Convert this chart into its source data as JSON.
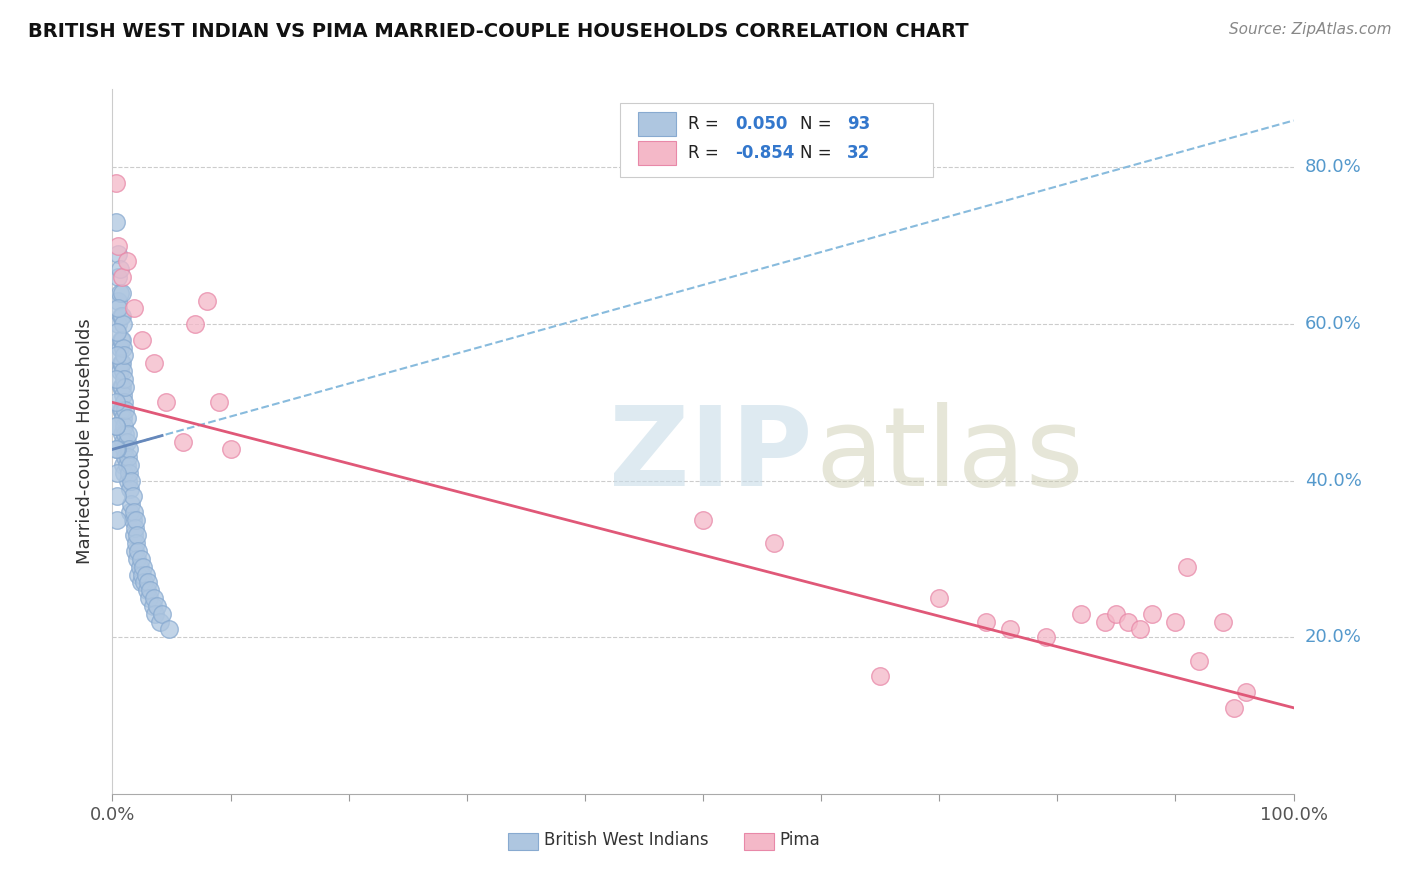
{
  "title": "BRITISH WEST INDIAN VS PIMA MARRIED-COUPLE HOUSEHOLDS CORRELATION CHART",
  "source_text": "Source: ZipAtlas.com",
  "ylabel": "Married-couple Households",
  "xlim": [
    0.0,
    1.0
  ],
  "ylim": [
    0.0,
    0.9
  ],
  "y_tick_values": [
    0.2,
    0.4,
    0.6,
    0.8
  ],
  "y_tick_labels": [
    "20.0%",
    "40.0%",
    "60.0%",
    "80.0%"
  ],
  "blue_color": "#aec6e0",
  "pink_color": "#f4b8c8",
  "blue_edge": "#88aad0",
  "pink_edge": "#e888a8",
  "blue_line_color": "#6688bb",
  "pink_line_color": "#e05878",
  "dashed_line_color": "#88bbdd",
  "blue_R": 0.05,
  "pink_R": -0.854,
  "blue_N": 93,
  "pink_N": 32,
  "blue_line_intercept": 0.44,
  "blue_line_slope": 0.42,
  "pink_line_intercept": 0.5,
  "pink_line_slope": -0.39,
  "blue_x": [
    0.003,
    0.005,
    0.005,
    0.005,
    0.005,
    0.006,
    0.006,
    0.006,
    0.006,
    0.007,
    0.007,
    0.007,
    0.007,
    0.007,
    0.008,
    0.008,
    0.008,
    0.008,
    0.008,
    0.008,
    0.008,
    0.009,
    0.009,
    0.009,
    0.009,
    0.009,
    0.009,
    0.009,
    0.01,
    0.01,
    0.01,
    0.01,
    0.01,
    0.01,
    0.011,
    0.011,
    0.011,
    0.011,
    0.012,
    0.012,
    0.012,
    0.013,
    0.013,
    0.013,
    0.014,
    0.014,
    0.015,
    0.015,
    0.015,
    0.016,
    0.016,
    0.017,
    0.017,
    0.018,
    0.018,
    0.019,
    0.019,
    0.02,
    0.02,
    0.021,
    0.021,
    0.022,
    0.022,
    0.023,
    0.024,
    0.024,
    0.025,
    0.026,
    0.027,
    0.028,
    0.029,
    0.03,
    0.031,
    0.032,
    0.034,
    0.035,
    0.036,
    0.038,
    0.04,
    0.042,
    0.004,
    0.004,
    0.004,
    0.004,
    0.003,
    0.003,
    0.003,
    0.003,
    0.003,
    0.004,
    0.004,
    0.005,
    0.048
  ],
  "blue_y": [
    0.73,
    0.69,
    0.66,
    0.63,
    0.6,
    0.57,
    0.54,
    0.67,
    0.64,
    0.61,
    0.58,
    0.55,
    0.52,
    0.49,
    0.64,
    0.61,
    0.58,
    0.55,
    0.52,
    0.49,
    0.46,
    0.6,
    0.57,
    0.54,
    0.51,
    0.48,
    0.45,
    0.42,
    0.56,
    0.53,
    0.5,
    0.47,
    0.44,
    0.41,
    0.52,
    0.49,
    0.46,
    0.43,
    0.48,
    0.45,
    0.42,
    0.46,
    0.43,
    0.4,
    0.44,
    0.41,
    0.42,
    0.39,
    0.36,
    0.4,
    0.37,
    0.38,
    0.35,
    0.36,
    0.33,
    0.34,
    0.31,
    0.35,
    0.32,
    0.33,
    0.3,
    0.31,
    0.28,
    0.29,
    0.3,
    0.27,
    0.28,
    0.29,
    0.27,
    0.28,
    0.26,
    0.27,
    0.25,
    0.26,
    0.24,
    0.25,
    0.23,
    0.24,
    0.22,
    0.23,
    0.44,
    0.41,
    0.38,
    0.35,
    0.47,
    0.44,
    0.5,
    0.47,
    0.53,
    0.56,
    0.59,
    0.62,
    0.21
  ],
  "pink_x": [
    0.003,
    0.005,
    0.008,
    0.012,
    0.018,
    0.025,
    0.035,
    0.045,
    0.06,
    0.07,
    0.08,
    0.09,
    0.1,
    0.5,
    0.56,
    0.65,
    0.7,
    0.74,
    0.76,
    0.79,
    0.82,
    0.84,
    0.85,
    0.86,
    0.87,
    0.88,
    0.9,
    0.91,
    0.92,
    0.94,
    0.95,
    0.96
  ],
  "pink_y": [
    0.78,
    0.7,
    0.66,
    0.68,
    0.62,
    0.58,
    0.55,
    0.5,
    0.45,
    0.6,
    0.63,
    0.5,
    0.44,
    0.35,
    0.32,
    0.15,
    0.25,
    0.22,
    0.21,
    0.2,
    0.23,
    0.22,
    0.23,
    0.22,
    0.21,
    0.23,
    0.22,
    0.29,
    0.17,
    0.22,
    0.11,
    0.13
  ]
}
